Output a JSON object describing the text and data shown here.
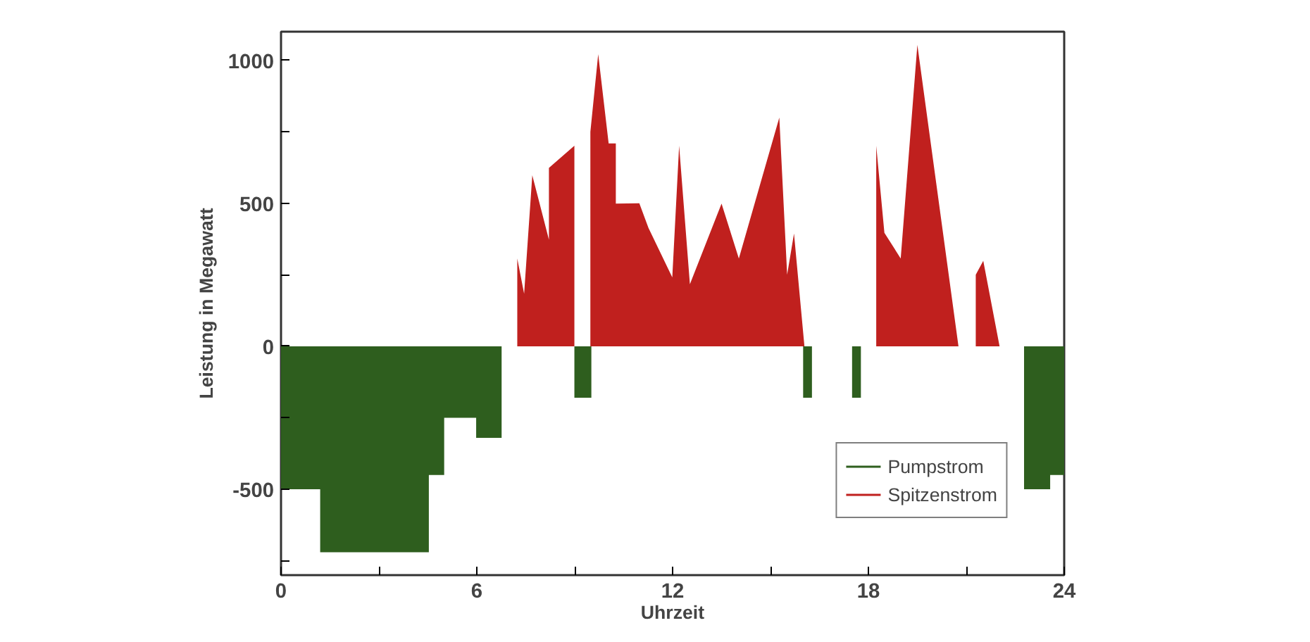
{
  "chart_data": {
    "type": "area",
    "xlabel": "Uhrzeit",
    "ylabel": "Leistung in Megawatt",
    "xlim": [
      0,
      24
    ],
    "xticks": [
      0,
      {
        "value": 3,
        "label": null
      },
      6,
      {
        "value": 9,
        "label": null
      },
      12,
      {
        "value": 15,
        "label": null
      },
      18,
      {
        "value": 21,
        "label": null
      },
      24
    ],
    "ylim": [
      -800,
      1100
    ],
    "yticks": [
      {
        "value": -750,
        "label": null
      },
      -500,
      {
        "value": -250,
        "label": null
      },
      0,
      {
        "value": 250,
        "label": null
      },
      500,
      {
        "value": 750,
        "label": null
      },
      1000
    ],
    "grid": false,
    "legend": "bottom right",
    "series": [
      {
        "name": "Pumpstrom",
        "color": "#2e5e1e",
        "x": [
          0,
          0,
          1.2,
          1.2,
          4.53,
          4.53,
          5.0,
          5.0,
          5.98,
          5.98,
          6.76,
          6.76,
          8.99,
          8.99,
          9.51,
          9.51,
          16.0,
          16.0,
          16.27,
          16.27,
          17.5,
          17.5,
          17.77,
          17.77,
          22.77,
          22.77,
          23.57,
          23.57,
          24,
          24
        ],
        "values": [
          0,
          -500,
          -500,
          -720,
          -720,
          -450,
          -450,
          -250,
          -250,
          -320,
          -320,
          0,
          0,
          -180,
          -180,
          0,
          0,
          -180,
          -180,
          0,
          0,
          -180,
          -180,
          0,
          0,
          -500,
          -500,
          -450,
          -450,
          0
        ]
      },
      {
        "name": "Spitzenstrom",
        "color": "#c0201e",
        "x": [
          0,
          7.24,
          7.24,
          7.45,
          7.7,
          8.21,
          8.21,
          8.99,
          8.99,
          9.48,
          9.48,
          9.72,
          10.04,
          10.26,
          10.26,
          10.98,
          11.26,
          11.99,
          12.2,
          12.53,
          13.5,
          14.03,
          15.27,
          15.51,
          15.72,
          16.04,
          18.24,
          18.24,
          18.49,
          18.99,
          19.5,
          20.76,
          21.29,
          21.29,
          21.52,
          22.02,
          24
        ],
        "values": [
          0,
          0,
          307,
          184,
          598,
          373,
          624,
          701,
          0,
          0,
          750,
          1021,
          709,
          709,
          499,
          500,
          414,
          241,
          701,
          217,
          499,
          307,
          800,
          250,
          394,
          0,
          0,
          701,
          397,
          307,
          1054,
          0,
          0,
          250,
          299,
          0,
          0
        ]
      }
    ]
  }
}
